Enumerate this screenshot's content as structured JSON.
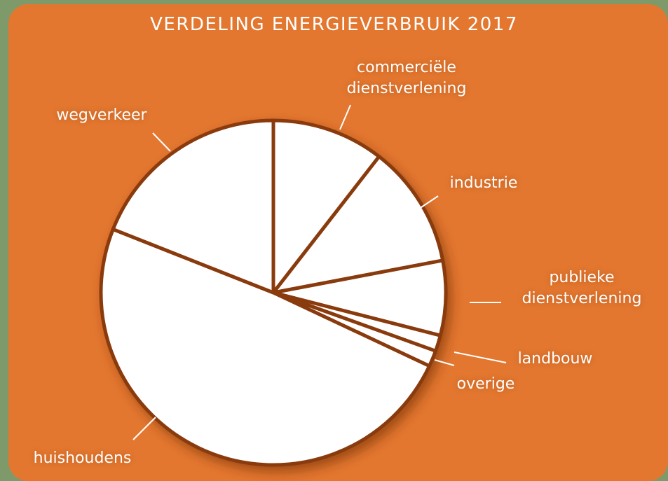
{
  "chart_data": {
    "type": "pie",
    "title": "VERDELING ENERGIEVERBRUIK 2017",
    "categories": [
      "commerciële dienstverlening",
      "industrie",
      "publieke dienstverlening",
      "landbouw",
      "overige",
      "huishoudens",
      "wegverkeer"
    ],
    "values": [
      10.5,
      11.5,
      7,
      1.5,
      1.5,
      49,
      19
    ],
    "color": "#ffffff"
  }
}
